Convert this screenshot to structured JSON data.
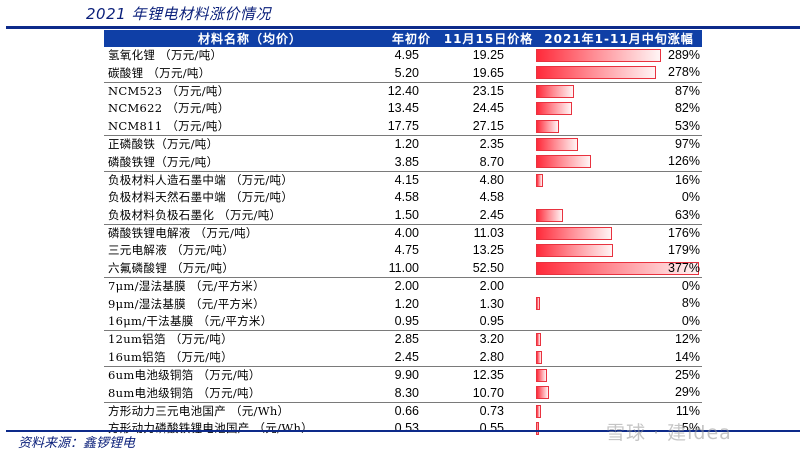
{
  "title": "2021 年锂电材料涨价情况",
  "source": "资料来源：鑫锣锂电",
  "watermark": "雪球 · 建idea",
  "colors": {
    "header_bg": "#0f3fa6",
    "rule": "#0d2a8a",
    "bar": "#ff2a3a"
  },
  "table": {
    "headers": {
      "name": "材料名称（均价）",
      "start": "年初价",
      "now": "11月15日价格",
      "change": "2021年1-11月中旬涨幅"
    },
    "rows": [
      {
        "name": "氢氧化锂 （万元/吨）",
        "start": "4.95",
        "now": "19.25",
        "change": "289%",
        "pct": 289,
        "sep": false
      },
      {
        "name": "碳酸锂 （万元/吨）",
        "start": "5.20",
        "now": "19.65",
        "change": "278%",
        "pct": 278,
        "sep": false
      },
      {
        "name": "NCM523 （万元/吨）",
        "start": "12.40",
        "now": "23.15",
        "change": "87%",
        "pct": 87,
        "sep": true
      },
      {
        "name": "NCM622 （万元/吨）",
        "start": "13.45",
        "now": "24.45",
        "change": "82%",
        "pct": 82,
        "sep": false
      },
      {
        "name": "NCM811 （万元/吨）",
        "start": "17.75",
        "now": "27.15",
        "change": "53%",
        "pct": 53,
        "sep": false
      },
      {
        "name": "正磷酸铁（万元/吨）",
        "start": "1.20",
        "now": "2.35",
        "change": "97%",
        "pct": 97,
        "sep": true
      },
      {
        "name": "磷酸铁锂（万元/吨）",
        "start": "3.85",
        "now": "8.70",
        "change": "126%",
        "pct": 126,
        "sep": false
      },
      {
        "name": "负极材料人造石墨中端 （万元/吨）",
        "start": "4.15",
        "now": "4.80",
        "change": "16%",
        "pct": 16,
        "sep": true
      },
      {
        "name": "负极材料天然石墨中端 （万元/吨）",
        "start": "4.58",
        "now": "4.58",
        "change": "0%",
        "pct": 0,
        "sep": false
      },
      {
        "name": "负极材料负极石墨化 （万元/吨）",
        "start": "1.50",
        "now": "2.45",
        "change": "63%",
        "pct": 63,
        "sep": false
      },
      {
        "name": "磷酸铁锂电解液 （万元/吨）",
        "start": "4.00",
        "now": "11.03",
        "change": "176%",
        "pct": 176,
        "sep": true
      },
      {
        "name": "三元电解液 （万元/吨）",
        "start": "4.75",
        "now": "13.25",
        "change": "179%",
        "pct": 179,
        "sep": false
      },
      {
        "name": "六氟磷酸锂 （万元/吨）",
        "start": "11.00",
        "now": "52.50",
        "change": "377%",
        "pct": 377,
        "sep": false
      },
      {
        "name": "7μm/湿法基膜 （元/平方米）",
        "start": "2.00",
        "now": "2.00",
        "change": "0%",
        "pct": 0,
        "sep": true
      },
      {
        "name": "9μm/湿法基膜 （元/平方米）",
        "start": "1.20",
        "now": "1.30",
        "change": "8%",
        "pct": 8,
        "sep": false
      },
      {
        "name": "16μm/干法基膜 （元/平方米）",
        "start": "0.95",
        "now": "0.95",
        "change": "0%",
        "pct": 0,
        "sep": false
      },
      {
        "name": "12um铝箔 （万元/吨）",
        "start": "2.85",
        "now": "3.20",
        "change": "12%",
        "pct": 12,
        "sep": true
      },
      {
        "name": "16um铝箔 （万元/吨）",
        "start": "2.45",
        "now": "2.80",
        "change": "14%",
        "pct": 14,
        "sep": false
      },
      {
        "name": "6um电池级铜箔 （万元/吨）",
        "start": "9.90",
        "now": "12.35",
        "change": "25%",
        "pct": 25,
        "sep": true
      },
      {
        "name": "8um电池级铜箔 （万元/吨）",
        "start": "8.30",
        "now": "10.70",
        "change": "29%",
        "pct": 29,
        "sep": false
      },
      {
        "name": "方形动力三元电池国产 （元/Wh）",
        "start": "0.66",
        "now": "0.73",
        "change": "11%",
        "pct": 11,
        "sep": true
      },
      {
        "name": "方形动力磷酸铁锂电池国产 （元/Wh）",
        "start": "0.53",
        "now": "0.55",
        "change": "5%",
        "pct": 5,
        "sep": false
      }
    ]
  }
}
